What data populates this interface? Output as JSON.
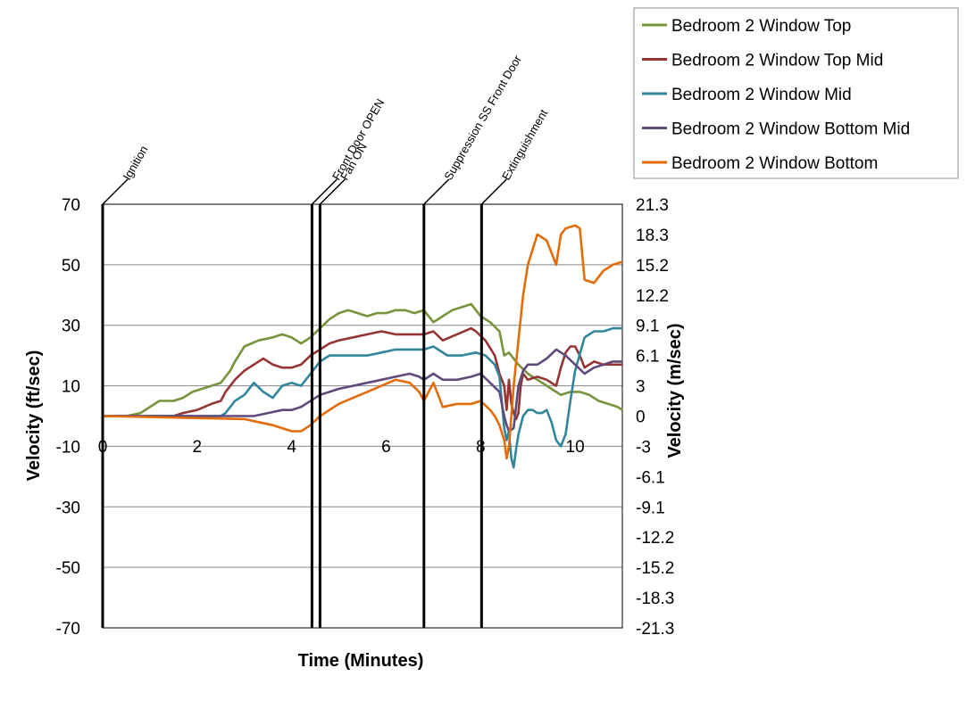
{
  "chart_data": {
    "type": "line",
    "xlabel": "Time (Minutes)",
    "ylabel": "Velocity (ft/sec)",
    "ylabel_right": "Velocity (m/sec)",
    "xlim": [
      0,
      11
    ],
    "ylim": [
      -70,
      70
    ],
    "x_ticks": [
      "0",
      "2",
      "4",
      "6",
      "8",
      "10"
    ],
    "y_ticks": [
      "70",
      "50",
      "30",
      "10",
      "-10",
      "-30",
      "-50",
      "-70"
    ],
    "y_ticks_right": [
      "21.3",
      "18.3",
      "15.2",
      "12.2",
      "9.1",
      "6.1",
      "3",
      "0",
      "-3",
      "-6.1",
      "-9.1",
      "-12.2",
      "-15.2",
      "-18.3",
      "-21.3"
    ],
    "grid": "horizontal",
    "legend_position": "top-right",
    "events": [
      {
        "label": "Ignition",
        "x": 0
      },
      {
        "label": "Front Door OPEN",
        "x": 4.43
      },
      {
        "label": "Fan ON",
        "x": 4.6
      },
      {
        "label": "Suppression SS Front Door",
        "x": 6.8
      },
      {
        "label": "Extinguishment",
        "x": 8.02
      }
    ],
    "series": [
      {
        "name": "Bedroom 2 Window Top",
        "color": "#77933c",
        "x": [
          0,
          0.5,
          0.8,
          1.0,
          1.2,
          1.5,
          1.7,
          1.9,
          2.1,
          2.3,
          2.5,
          2.7,
          2.8,
          3.0,
          3.3,
          3.6,
          3.8,
          4.0,
          4.2,
          4.4,
          4.6,
          4.8,
          5.0,
          5.2,
          5.4,
          5.6,
          5.8,
          6.0,
          6.2,
          6.4,
          6.6,
          6.8,
          7.0,
          7.2,
          7.4,
          7.6,
          7.8,
          7.9,
          8.0,
          8.2,
          8.4,
          8.5,
          8.6,
          8.8,
          9.0,
          9.2,
          9.5,
          9.7,
          9.9,
          10.1,
          10.3,
          10.5,
          10.7,
          10.9,
          11.0
        ],
        "y": [
          0,
          0,
          1,
          3,
          5,
          5,
          6,
          8,
          9,
          10,
          11,
          15,
          18,
          23,
          25,
          26,
          27,
          26,
          24,
          26,
          29,
          32,
          34,
          35,
          34,
          33,
          34,
          34,
          35,
          35,
          34,
          35,
          31,
          33,
          35,
          36,
          37,
          35,
          33,
          31,
          28,
          20,
          21,
          17,
          14,
          12,
          9,
          7,
          8,
          8,
          7,
          5,
          4,
          3,
          2
        ]
      },
      {
        "name": "Bedroom 2 Window Top Mid",
        "color": "#943634",
        "x": [
          0,
          1.5,
          1.7,
          2.0,
          2.3,
          2.5,
          2.6,
          2.8,
          3.0,
          3.2,
          3.4,
          3.6,
          3.8,
          4.0,
          4.2,
          4.4,
          4.6,
          4.8,
          5.0,
          5.3,
          5.6,
          5.9,
          6.2,
          6.5,
          6.8,
          7.0,
          7.2,
          7.5,
          7.8,
          7.9,
          8.1,
          8.3,
          8.4,
          8.5,
          8.55,
          8.6,
          8.65,
          8.7,
          8.75,
          8.8,
          8.85,
          8.9,
          9.0,
          9.2,
          9.4,
          9.6,
          9.7,
          9.8,
          9.9,
          10.0,
          10.1,
          10.2,
          10.4,
          10.6,
          10.8,
          11.0
        ],
        "y": [
          0,
          0,
          1,
          2,
          4,
          5,
          8,
          12,
          15,
          17,
          19,
          17,
          16,
          16,
          17,
          20,
          22,
          24,
          25,
          26,
          27,
          28,
          27,
          27,
          27,
          28,
          25,
          27,
          29,
          28,
          25,
          20,
          14,
          10,
          2,
          12,
          4,
          1,
          -1,
          1,
          10,
          14,
          12,
          13,
          12,
          10,
          16,
          21,
          23,
          23,
          20,
          16,
          18,
          17,
          17,
          17
        ]
      },
      {
        "name": "Bedroom 2 Window Mid",
        "color": "#31859c",
        "x": [
          0,
          2.5,
          2.6,
          2.8,
          3.0,
          3.2,
          3.4,
          3.6,
          3.8,
          4.0,
          4.2,
          4.4,
          4.6,
          4.8,
          5.0,
          5.3,
          5.6,
          5.9,
          6.2,
          6.5,
          6.8,
          7.0,
          7.3,
          7.6,
          7.9,
          8.1,
          8.3,
          8.4,
          8.5,
          8.55,
          8.6,
          8.65,
          8.7,
          8.75,
          8.8,
          8.9,
          9.0,
          9.1,
          9.2,
          9.3,
          9.4,
          9.5,
          9.6,
          9.7,
          9.8,
          9.9,
          10.0,
          10.2,
          10.4,
          10.6,
          10.8,
          11.0
        ],
        "y": [
          0,
          0,
          1,
          5,
          7,
          11,
          8,
          6,
          10,
          11,
          10,
          14,
          18,
          20,
          20,
          20,
          20,
          21,
          22,
          22,
          22,
          23,
          20,
          20,
          21,
          20,
          17,
          13,
          -4,
          -8,
          -5,
          -14,
          -17,
          -11,
          -6,
          0,
          2,
          2,
          1,
          1,
          2,
          -2,
          -8,
          -10,
          -6,
          5,
          15,
          26,
          28,
          28,
          29,
          29
        ]
      },
      {
        "name": "Bedroom 2 Window Bottom Mid",
        "color": "#604a7b",
        "x": [
          0,
          3.0,
          3.2,
          3.5,
          3.8,
          4.0,
          4.2,
          4.4,
          4.6,
          4.8,
          5.0,
          5.3,
          5.6,
          5.9,
          6.2,
          6.5,
          6.7,
          6.8,
          7.0,
          7.2,
          7.5,
          7.8,
          8.0,
          8.2,
          8.4,
          8.5,
          8.55,
          8.6,
          8.7,
          8.8,
          8.9,
          9.0,
          9.2,
          9.4,
          9.6,
          9.8,
          10.0,
          10.2,
          10.4,
          10.6,
          10.8,
          11.0
        ],
        "y": [
          0,
          0,
          0,
          1,
          2,
          2,
          3,
          5,
          7,
          8,
          9,
          10,
          11,
          12,
          13,
          14,
          13,
          12,
          14,
          12,
          12,
          13,
          14,
          11,
          8,
          0,
          -3,
          -5,
          -4,
          10,
          15,
          17,
          17,
          19,
          22,
          20,
          17,
          14,
          16,
          17,
          18,
          18
        ]
      },
      {
        "name": "Bedroom 2 Window Bottom",
        "color": "#e36c09",
        "x": [
          0,
          3.0,
          3.3,
          3.6,
          3.8,
          4.0,
          4.2,
          4.4,
          4.6,
          4.8,
          5.0,
          5.3,
          5.6,
          5.9,
          6.2,
          6.5,
          6.7,
          6.8,
          7.0,
          7.2,
          7.5,
          7.8,
          8.0,
          8.2,
          8.3,
          8.4,
          8.5,
          8.55,
          8.6,
          8.7,
          8.8,
          8.9,
          9.0,
          9.2,
          9.4,
          9.6,
          9.7,
          9.8,
          10.0,
          10.1,
          10.2,
          10.4,
          10.6,
          10.8,
          11.0
        ],
        "y": [
          0,
          -1,
          -2,
          -3,
          -4,
          -5,
          -5,
          -3,
          0,
          2,
          4,
          6,
          8,
          10,
          12,
          11,
          8,
          5,
          11,
          3,
          4,
          4,
          5,
          2,
          0,
          -3,
          -8,
          -14,
          -10,
          10,
          25,
          40,
          50,
          60,
          58,
          50,
          60,
          62,
          63,
          62,
          45,
          44,
          48,
          50,
          51
        ]
      }
    ]
  }
}
